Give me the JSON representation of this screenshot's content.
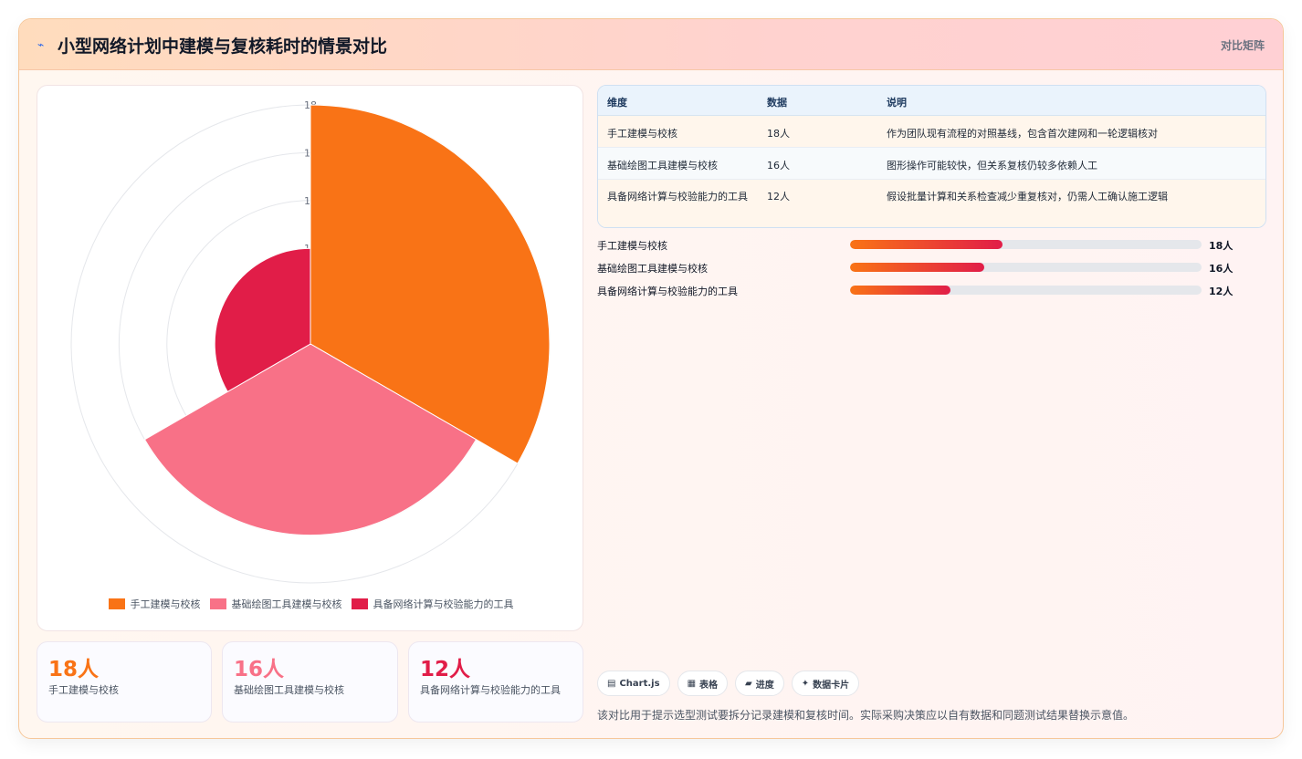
{
  "header": {
    "icon": "sparkle-icon",
    "title": "小型网络计划中建模与复核耗时的情景对比",
    "mode_label": "对比矩阵"
  },
  "chart_data": {
    "type": "polarArea",
    "categories": [
      "手工建模与校核",
      "基础绘图工具建模与校核",
      "具备网络计算与校验能力的工具"
    ],
    "values": [
      18,
      16,
      12
    ],
    "colors": [
      "#f97316",
      "#f87187",
      "#e11d48"
    ],
    "radial_ticks": [
      "18",
      "16",
      "14",
      "12"
    ],
    "rlim": [
      12,
      18
    ],
    "legend_position": "bottom"
  },
  "stats": [
    {
      "value": "18人",
      "label": "手工建模与校核",
      "color": "#f97316"
    },
    {
      "value": "16人",
      "label": "基础绘图工具建模与校核",
      "color": "#f87187"
    },
    {
      "value": "12人",
      "label": "具备网络计算与校验能力的工具",
      "color": "#e11d48"
    }
  ],
  "table": {
    "headers": [
      "维度",
      "数据",
      "说明"
    ],
    "rows": [
      [
        "手工建模与校核",
        "18人",
        "作为团队现有流程的对照基线，包含首次建网和一轮逻辑核对"
      ],
      [
        "基础绘图工具建模与校核",
        "16人",
        "图形操作可能较快，但关系复核仍较多依赖人工"
      ],
      [
        "具备网络计算与校验能力的工具",
        "12人",
        "假设批量计算和关系检查减少重复核对，仍需人工确认施工逻辑"
      ]
    ]
  },
  "bars": [
    {
      "label": "手工建模与校核",
      "value": "18人",
      "fraction": 0.435
    },
    {
      "label": "基础绘图工具建模与校核",
      "value": "16人",
      "fraction": 0.382
    },
    {
      "label": "具备网络计算与校验能力的工具",
      "value": "12人",
      "fraction": 0.286
    }
  ],
  "chips": [
    {
      "icon": "▤",
      "icon_name": "chart-icon",
      "label": "Chart.js"
    },
    {
      "icon": "▦",
      "icon_name": "table-icon",
      "label": "表格"
    },
    {
      "icon": "▰",
      "icon_name": "progress-icon",
      "label": "进度"
    },
    {
      "icon": "✦",
      "icon_name": "card-icon",
      "label": "数据卡片"
    }
  ],
  "note": "该对比用于提示选型测试要拆分记录建模和复核时间。实际采购决策应以自有数据和同题测试结果替换示意值。"
}
